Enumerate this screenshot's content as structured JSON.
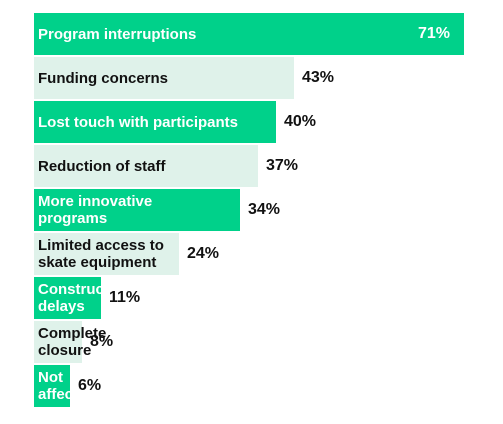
{
  "chart_data": {
    "type": "bar",
    "orientation": "horizontal",
    "categories": [
      "Program interruptions",
      "Funding concerns",
      "Lost touch with participants",
      "Reduction of staff",
      "More innovative\nprograms",
      "Limited access to\nskate equipment",
      "Construction\ndelays",
      "Complete\nclosure",
      "Not\naffected"
    ],
    "values": [
      71,
      43,
      40,
      37,
      34,
      24,
      11,
      8,
      6
    ],
    "value_labels": [
      "71%",
      "43%",
      "40%",
      "37%",
      "34%",
      "24%",
      "11%",
      "8%",
      "6%"
    ],
    "bar_colors": [
      "#00d18a",
      "#dff2ea",
      "#00d18a",
      "#dff2ea",
      "#00d18a",
      "#dff2ea",
      "#00d18a",
      "#dff2ea",
      "#00d18a"
    ],
    "label_colors": [
      "#ffffff",
      "#111111",
      "#ffffff",
      "#111111",
      "#ffffff",
      "#111111",
      "#ffffff",
      "#111111",
      "#ffffff"
    ],
    "title": "",
    "xlabel": "",
    "ylabel": "",
    "xlim": [
      0,
      71
    ],
    "grid": false
  }
}
